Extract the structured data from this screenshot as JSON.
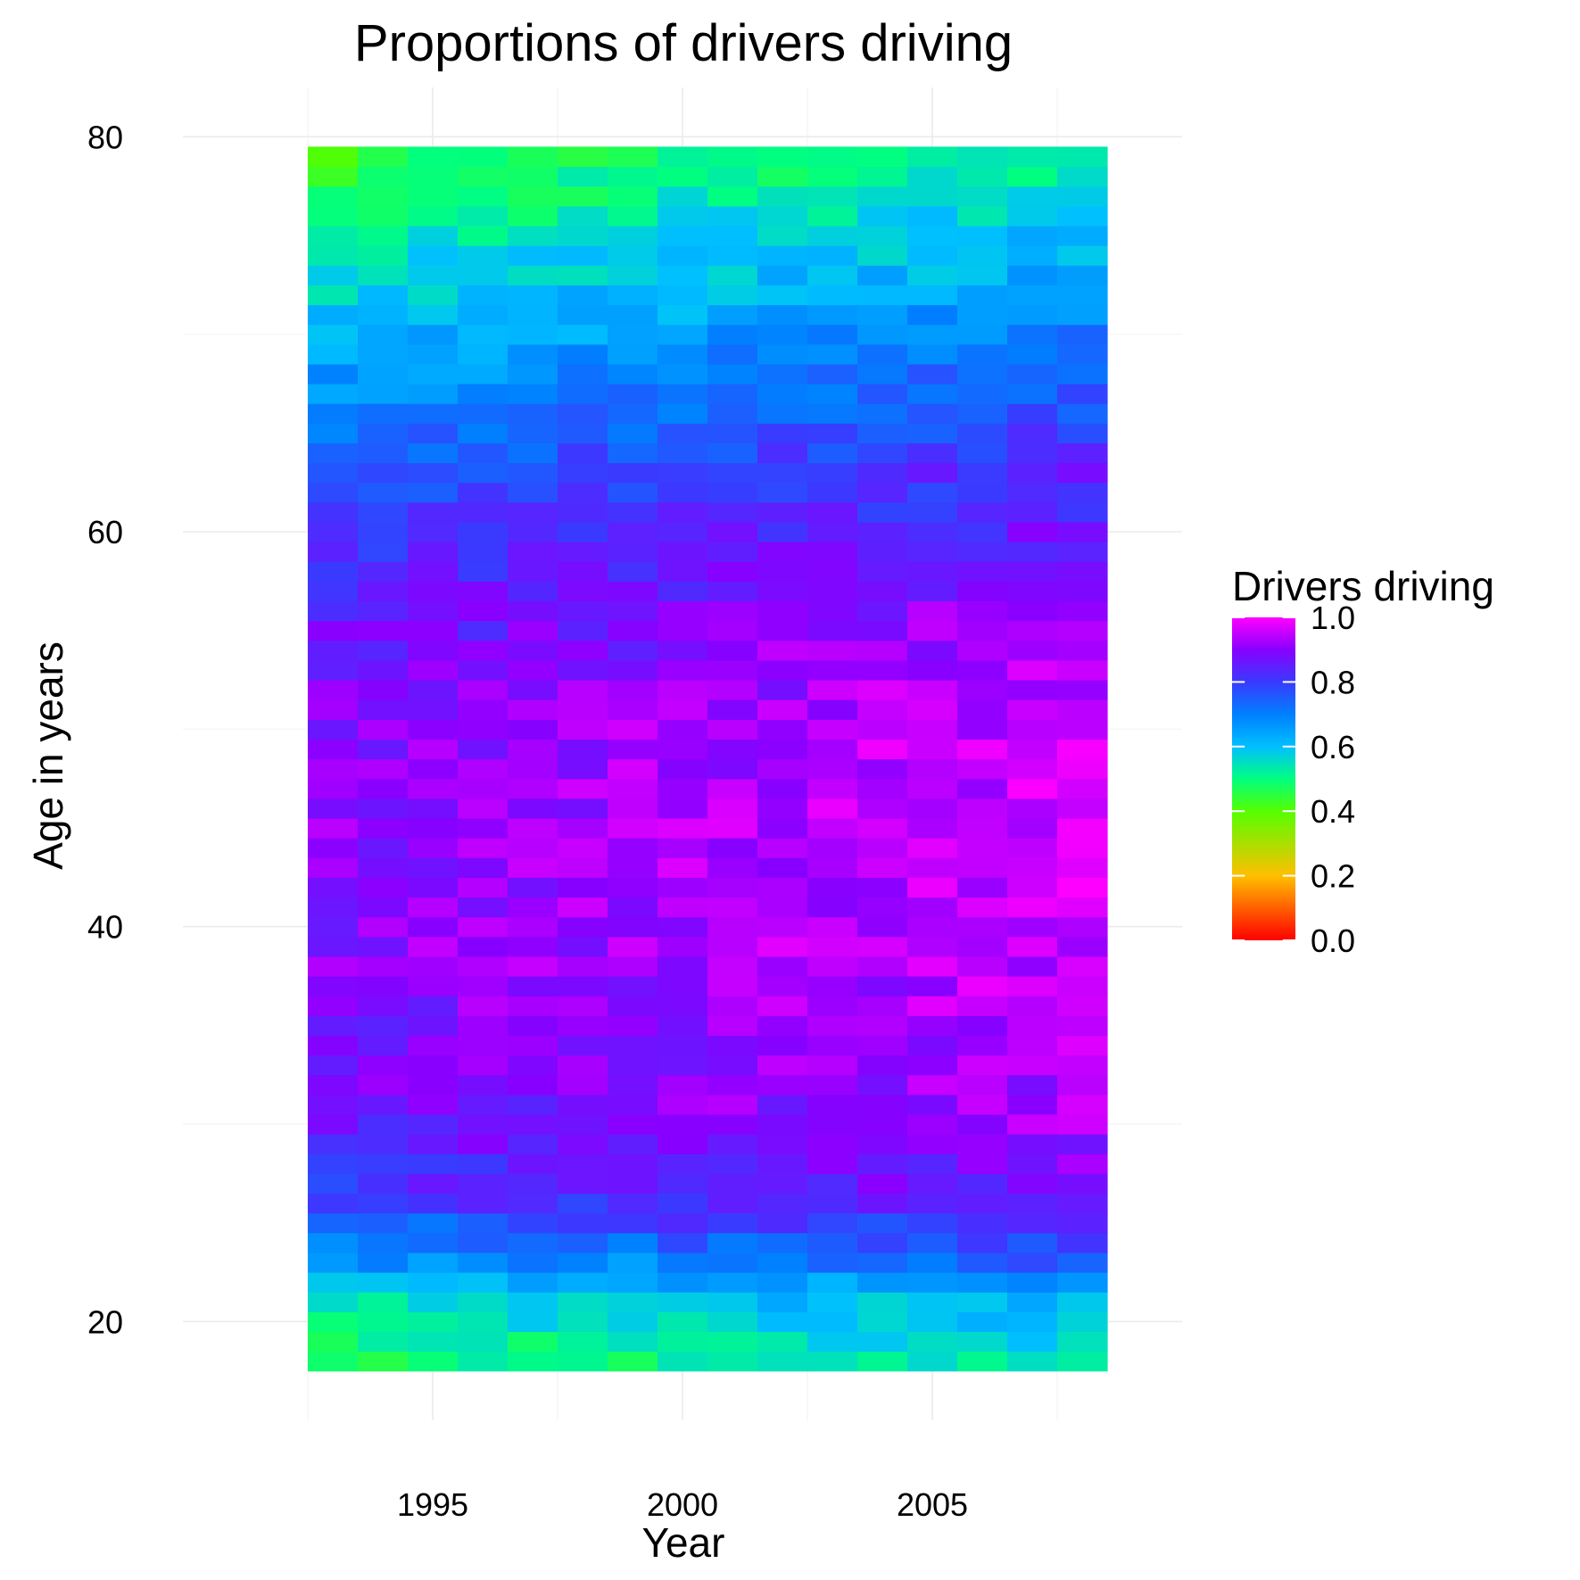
{
  "chart_data": {
    "type": "heatmap",
    "title": "Proportions of drivers driving",
    "xlabel": "Year",
    "ylabel": "Age in years",
    "x_ticks": [
      1995,
      2000,
      2005
    ],
    "y_ticks": [
      20,
      40,
      60,
      80
    ],
    "x_range": [
      1992.5,
      2008.5
    ],
    "y_range": [
      17.5,
      79.5
    ],
    "xlim": [
      1990,
      2010
    ],
    "ylim": [
      15,
      82.5
    ],
    "years_range": [
      1993,
      2008
    ],
    "ages_range": [
      18,
      79
    ],
    "value_description": "Proportion of drivers driving per year (columns) and age (rows); low near ages 18-22 and 70-79 (approx 0.4-0.7), high for ages 30-60 (approx 0.8-1.0), rising in later years.",
    "anchor_profile_by_age": [
      {
        "age": 18,
        "value": 0.47
      },
      {
        "age": 21,
        "value": 0.55
      },
      {
        "age": 23,
        "value": 0.66
      },
      {
        "age": 26,
        "value": 0.79
      },
      {
        "age": 30,
        "value": 0.86
      },
      {
        "age": 40,
        "value": 0.9
      },
      {
        "age": 50,
        "value": 0.9
      },
      {
        "age": 57,
        "value": 0.84
      },
      {
        "age": 63,
        "value": 0.76
      },
      {
        "age": 68,
        "value": 0.66
      },
      {
        "age": 73,
        "value": 0.56
      },
      {
        "age": 79,
        "value": 0.45
      }
    ],
    "legend": {
      "title": "Drivers driving",
      "ticks": [
        "0.0",
        "0.2",
        "0.4",
        "0.6",
        "0.8",
        "1.0"
      ],
      "tick_values": [
        0.0,
        0.2,
        0.4,
        0.6,
        0.8,
        1.0
      ],
      "range": [
        0,
        1
      ],
      "color_stops": [
        {
          "value": 0.0,
          "color": "#ff0000"
        },
        {
          "value": 0.2,
          "color": "#ffbf00"
        },
        {
          "value": 0.4,
          "color": "#55ff00"
        },
        {
          "value": 0.5,
          "color": "#00ff80"
        },
        {
          "value": 0.6,
          "color": "#00bfff"
        },
        {
          "value": 0.7,
          "color": "#0080ff"
        },
        {
          "value": 0.8,
          "color": "#3a3aff"
        },
        {
          "value": 0.9,
          "color": "#8800ff"
        },
        {
          "value": 1.0,
          "color": "#ff00ff"
        }
      ]
    }
  }
}
